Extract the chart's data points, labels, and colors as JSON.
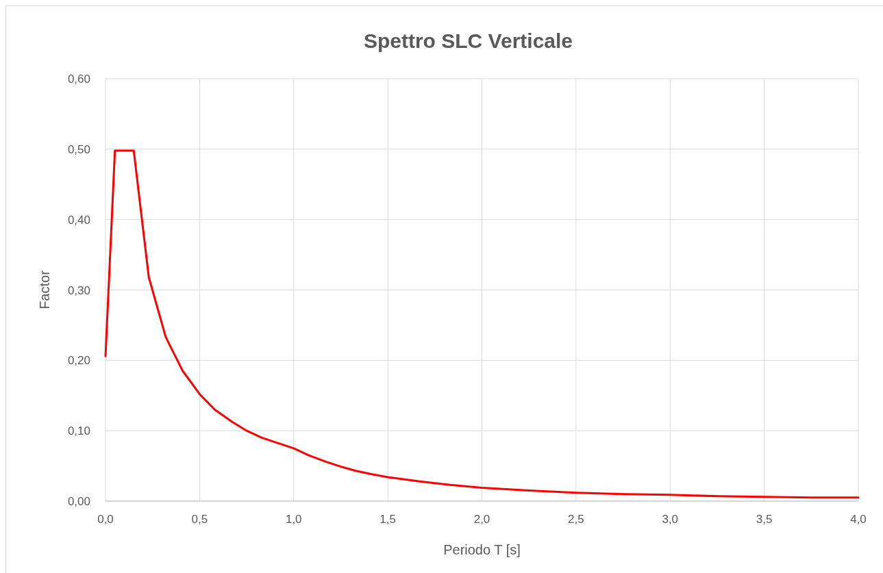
{
  "chart_data": {
    "type": "line",
    "title": "Spettro SLC Verticale",
    "xlabel": "Periodo T [s]",
    "ylabel": "Factor",
    "x": [
      0,
      0.05,
      0.15,
      0.23,
      0.32,
      0.41,
      0.5,
      0.58,
      0.67,
      0.75,
      0.83,
      0.92,
      1.0,
      1.08,
      1.17,
      1.25,
      1.33,
      1.42,
      1.5,
      1.67,
      1.83,
      2.0,
      2.25,
      2.5,
      2.75,
      3.0,
      3.25,
      3.5,
      3.75,
      4.0
    ],
    "series": [
      {
        "color": "#ff0000",
        "values": [
          0.206,
          0.498,
          0.498,
          0.318,
          0.233,
          0.185,
          0.152,
          0.13,
          0.113,
          0.1,
          0.09,
          0.082,
          0.075,
          0.065,
          0.056,
          0.049,
          0.043,
          0.038,
          0.034,
          0.028,
          0.023,
          0.019,
          0.015,
          0.012,
          0.01,
          0.009,
          0.007,
          0.006,
          0.005,
          0.005
        ]
      }
    ],
    "xlim": [
      0,
      4
    ],
    "ylim": [
      0,
      0.6
    ],
    "xticks": [
      {
        "value": 0,
        "label": "0,0"
      },
      {
        "value": 0.5,
        "label": "0,5"
      },
      {
        "value": 1,
        "label": "1,0"
      },
      {
        "value": 1.5,
        "label": "1,5"
      },
      {
        "value": 2,
        "label": "2,0"
      },
      {
        "value": 2.5,
        "label": "2,5"
      },
      {
        "value": 3,
        "label": "3,0"
      },
      {
        "value": 3.5,
        "label": "3,5"
      },
      {
        "value": 4,
        "label": "4,0"
      }
    ],
    "yticks": [
      {
        "value": 0,
        "label": "0,00"
      },
      {
        "value": 0.1,
        "label": "0,10"
      },
      {
        "value": 0.2,
        "label": "0,20"
      },
      {
        "value": 0.3,
        "label": "0,30"
      },
      {
        "value": 0.4,
        "label": "0,40"
      },
      {
        "value": 0.5,
        "label": "0,50"
      },
      {
        "value": 0.6,
        "label": "0,60"
      }
    ],
    "grid": true,
    "marker": "none",
    "line_style": "solid"
  }
}
